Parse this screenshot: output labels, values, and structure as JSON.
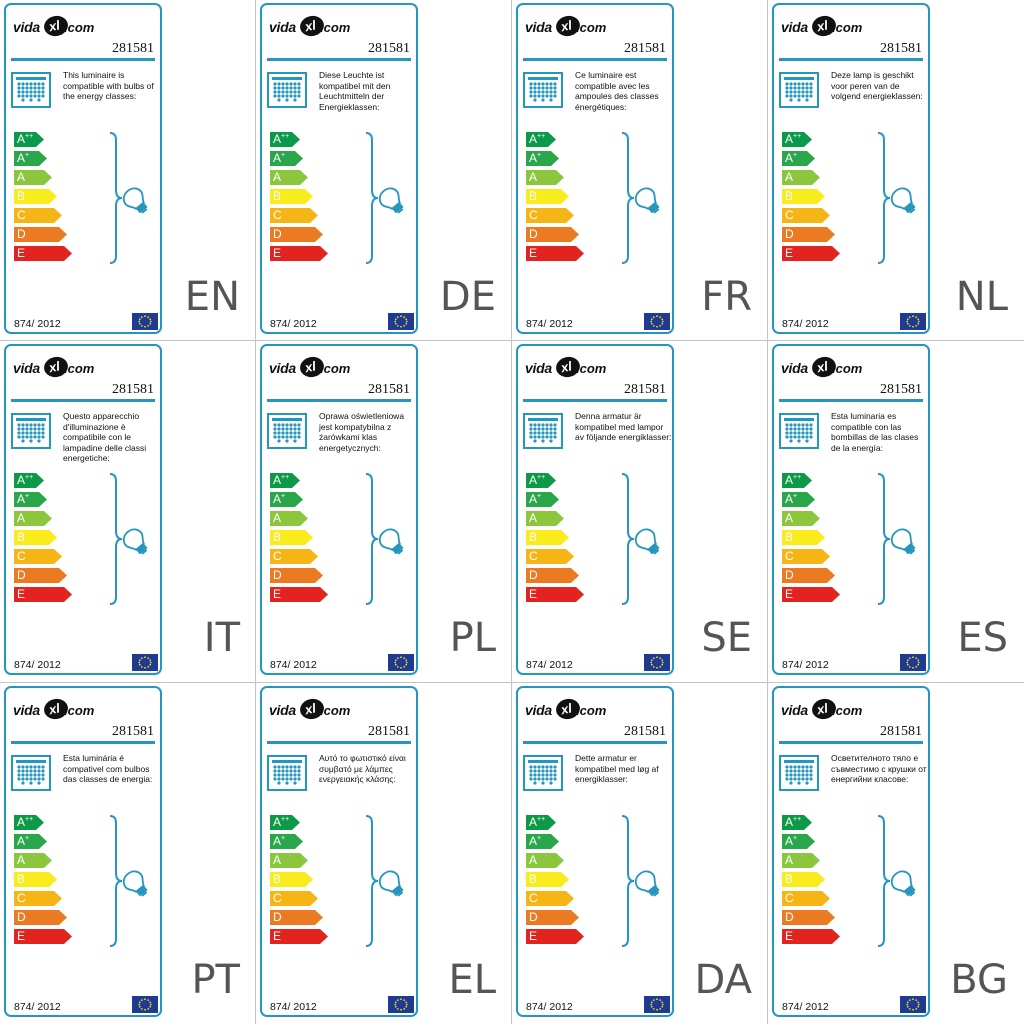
{
  "brand": {
    "vida": "vida",
    "xl": "xl",
    "com": ".com"
  },
  "product_code": "281581",
  "regulation": "874/ 2012",
  "colors": {
    "border": "#2596be",
    "App": "#0c9a48",
    "Ap": "#2aa74a",
    "A": "#8cc63f",
    "B": "#f8ec1d",
    "C": "#f5b517",
    "D": "#ec7a23",
    "E": "#e3231f"
  },
  "energy_classes": [
    {
      "letter": "A",
      "sup": "++",
      "color": "#0c9a48",
      "width": 30
    },
    {
      "letter": "A",
      "sup": "+",
      "color": "#2aa74a",
      "width": 33
    },
    {
      "letter": "A",
      "sup": "",
      "color": "#8cc63f",
      "width": 38
    },
    {
      "letter": "B",
      "sup": "",
      "color": "#f8ec1d",
      "width": 43
    },
    {
      "letter": "C",
      "sup": "",
      "color": "#f5b517",
      "width": 48
    },
    {
      "letter": "D",
      "sup": "",
      "color": "#ec7a23",
      "width": 53
    },
    {
      "letter": "E",
      "sup": "",
      "color": "#e3231f",
      "width": 58
    }
  ],
  "icons": {
    "lamp": "chandelier-icon",
    "bulb": "light-bulb-icon",
    "flag": "eu-flag-icon"
  },
  "labels": [
    {
      "lang": "EN",
      "text": "This luminaire is compatible with bulbs of the energy classes:"
    },
    {
      "lang": "DE",
      "text": "Diese Leuchte ist kompatibel mit den Leuchtmitteln der Energieklassen:"
    },
    {
      "lang": "FR",
      "text": "Ce luminaire est compatible avec les ampoules des classes énergétiques:"
    },
    {
      "lang": "NL",
      "text": "Deze lamp is geschikt voor peren van de volgend energieklassen:"
    },
    {
      "lang": "IT",
      "text": "Questo apparecchio d'illuminazione è compatibile con le lampadine delle classi energetiche:"
    },
    {
      "lang": "PL",
      "text": "Oprawa oświetleniowa jest kompatybilna z żarówkami klas energetycznych:"
    },
    {
      "lang": "SE",
      "text": "Denna armatur är kompatibel med lampor av följande energiklasser:"
    },
    {
      "lang": "ES",
      "text": "Esta luminaria es compatible con las bombillas de las clases de la energía:"
    },
    {
      "lang": "PT",
      "text": "Esta luminária é compativel com bulbos das classes de energia:"
    },
    {
      "lang": "EL",
      "text": "Αυτό το φωτιστικό είναι συμβατό με λάμπες ενεργειακής κλάσης:"
    },
    {
      "lang": "DA",
      "text": "Dette armatur er kompatibel med løg af energiklasser:"
    },
    {
      "lang": "BG",
      "text": "Осветителното тяло е съвместимо с крушки от енергийни класове:"
    }
  ]
}
